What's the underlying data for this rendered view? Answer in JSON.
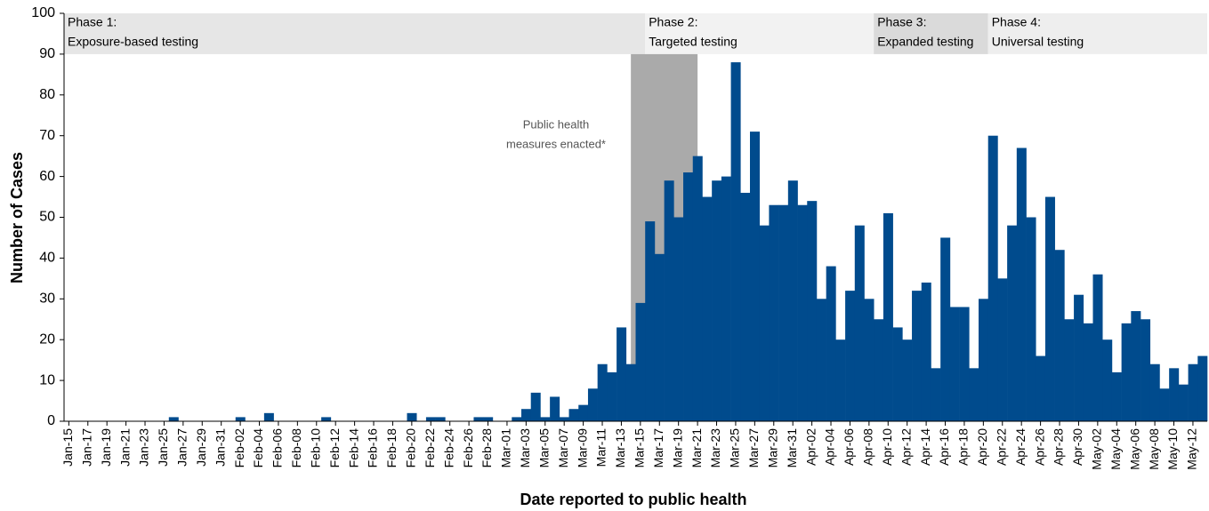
{
  "chart_data": {
    "type": "bar",
    "x_label": "Date reported to public health",
    "y_label": "Number of Cases",
    "color": "#004b8d",
    "ylim": [
      0,
      100
    ],
    "yticks": [
      0,
      10,
      20,
      30,
      40,
      50,
      60,
      70,
      80,
      90,
      100
    ],
    "categories": [
      "Jan-15",
      null,
      "Jan-17",
      null,
      "Jan-19",
      null,
      "Jan-21",
      null,
      "Jan-23",
      null,
      "Jan-25",
      null,
      "Jan-27",
      null,
      "Jan-29",
      null,
      "Jan-31",
      null,
      "Feb-02",
      null,
      "Feb-04",
      null,
      "Feb-06",
      null,
      "Feb-08",
      null,
      "Feb-10",
      null,
      "Feb-12",
      null,
      "Feb-14",
      null,
      "Feb-16",
      null,
      "Feb-18",
      null,
      "Feb-20",
      null,
      "Feb-22",
      null,
      "Feb-24",
      null,
      "Feb-26",
      null,
      "Feb-28",
      null,
      "Mar-01",
      null,
      "Mar-03",
      null,
      "Mar-05",
      null,
      "Mar-07",
      null,
      "Mar-09",
      null,
      "Mar-11",
      null,
      "Mar-13",
      null,
      "Mar-15",
      null,
      "Mar-17",
      null,
      "Mar-19",
      null,
      "Mar-21",
      null,
      "Mar-23",
      null,
      "Mar-25",
      null,
      "Mar-27",
      null,
      "Mar-29",
      null,
      "Mar-31",
      null,
      "Apr-02",
      null,
      "Apr-04",
      null,
      "Apr-06",
      null,
      "Apr-08",
      null,
      "Apr-10",
      null,
      "Apr-12",
      null,
      "Apr-14",
      null,
      "Apr-16",
      null,
      "Apr-18",
      null,
      "Apr-20",
      null,
      "Apr-22",
      null,
      "Apr-24",
      null,
      "Apr-26",
      null,
      "Apr-28",
      null,
      "Apr-30",
      null,
      "May-02",
      null,
      "May-04",
      null,
      "May-06",
      null,
      "May-08",
      null,
      "May-10",
      null,
      "May-12",
      null
    ],
    "values": [
      0,
      0,
      0,
      0,
      0,
      0,
      0,
      0,
      0,
      0,
      0,
      1,
      0,
      0,
      0,
      0,
      0,
      0,
      1,
      0,
      0,
      2,
      0,
      0,
      0,
      0,
      0,
      1,
      0,
      0,
      0,
      0,
      0,
      0,
      0,
      0,
      2,
      0,
      1,
      1,
      0,
      0,
      0,
      1,
      1,
      0,
      0,
      1,
      3,
      7,
      1,
      6,
      1,
      3,
      4,
      8,
      14,
      12,
      23,
      14,
      29,
      49,
      41,
      59,
      50,
      61,
      65,
      55,
      59,
      60,
      88,
      56,
      71,
      48,
      53,
      53,
      59,
      53,
      54,
      30,
      38,
      20,
      32,
      48,
      30,
      25,
      51,
      23,
      20,
      32,
      34,
      13,
      45,
      28,
      28,
      13,
      30,
      70,
      35,
      48,
      67,
      50,
      16,
      55,
      42,
      25,
      31,
      24,
      36,
      20,
      12,
      24,
      27,
      25,
      14,
      8,
      13,
      9,
      14,
      16
    ],
    "phase_band": [
      90,
      100
    ],
    "phases": [
      {
        "name": "Phase 1:",
        "label": "Exposure-based testing",
        "start": 0,
        "end": 61,
        "color": "#e6e6e6"
      },
      {
        "name": "Phase 2:",
        "label": "Targeted testing",
        "start": 61,
        "end": 85,
        "color": "#f2f2f2"
      },
      {
        "name": "Phase 3:",
        "label": "Expanded testing",
        "start": 85,
        "end": 97,
        "color": "#dadada"
      },
      {
        "name": "Phase 4:",
        "label": "Universal testing",
        "start": 97,
        "end": 120,
        "color": "#eeeeee"
      }
    ],
    "shade": {
      "label_lines": [
        "Public health",
        "measures enacted*"
      ],
      "start": 59.5,
      "end": 66.5,
      "color": "#aaaaaa"
    }
  }
}
